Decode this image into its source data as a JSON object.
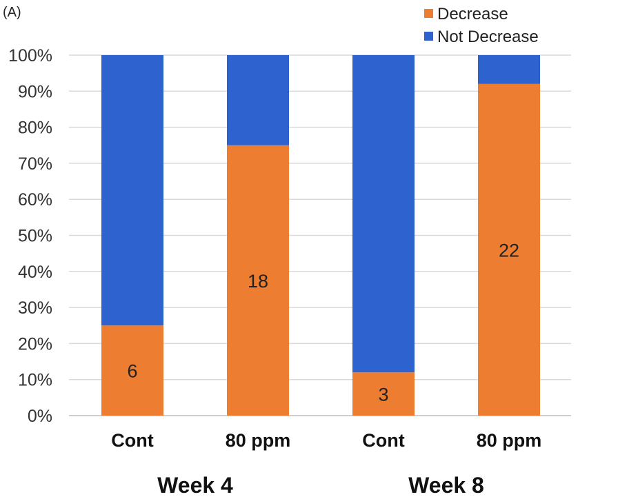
{
  "panel_label": "(A)",
  "chart_data": {
    "type": "bar",
    "stacked": true,
    "percent": true,
    "categories": [
      "Cont",
      "80 ppm",
      "Cont",
      "80 ppm"
    ],
    "groups": [
      {
        "label": "Week 4",
        "categories": [
          "Cont",
          "80 ppm"
        ]
      },
      {
        "label": "Week 8",
        "categories": [
          "Cont",
          "80 ppm"
        ]
      }
    ],
    "series": [
      {
        "name": "Decrease",
        "color": "#ED7D31",
        "values": [
          25,
          75,
          12,
          92
        ],
        "labels": [
          "6",
          "18",
          "3",
          "22"
        ]
      },
      {
        "name": "Not Decrease",
        "color": "#2E62CF",
        "values": [
          75,
          25,
          88,
          8
        ]
      }
    ],
    "y_ticks": [
      "0%",
      "10%",
      "20%",
      "30%",
      "40%",
      "50%",
      "60%",
      "70%",
      "80%",
      "90%",
      "100%"
    ],
    "ylim": [
      0,
      100
    ],
    "grid": true,
    "legend_position": "top-right"
  }
}
